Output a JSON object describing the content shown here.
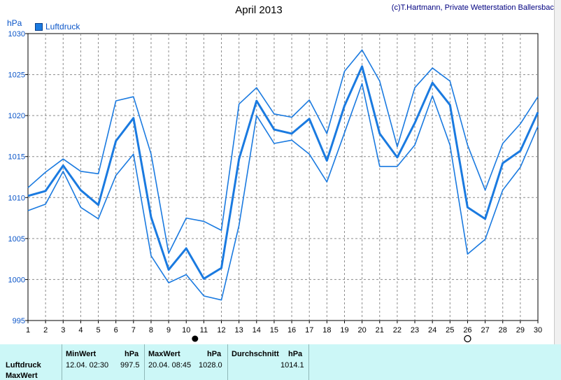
{
  "chart_data": {
    "type": "line",
    "title": "April 2013",
    "credit": "(c)T.Hartmann, Private Wetterstation Ballersbach",
    "unit": "hPa",
    "legend": [
      "Luftdruck"
    ],
    "x": [
      1,
      2,
      3,
      4,
      5,
      6,
      7,
      8,
      9,
      10,
      11,
      12,
      13,
      14,
      15,
      16,
      17,
      18,
      19,
      20,
      21,
      22,
      23,
      24,
      25,
      26,
      27,
      28,
      29,
      30
    ],
    "xlim": [
      1,
      30
    ],
    "ylim": [
      995,
      1030
    ],
    "yticks": [
      995,
      1000,
      1005,
      1010,
      1015,
      1020,
      1025,
      1030
    ],
    "grid": true,
    "series": [
      {
        "role": "max",
        "values": [
          1011.2,
          1013.1,
          1014.7,
          1013.2,
          1012.9,
          1021.8,
          1022.3,
          1015.3,
          1003.2,
          1007.5,
          1007.1,
          1006.0,
          1021.4,
          1023.4,
          1020.2,
          1019.8,
          1021.9,
          1017.8,
          1025.4,
          1028.0,
          1024.2,
          1016.2,
          1023.4,
          1025.8,
          1024.2,
          1016.4,
          1010.9,
          1016.6,
          1019.0,
          1022.3
        ]
      },
      {
        "role": "mean",
        "name": "Luftdruck",
        "values": [
          1010.2,
          1010.8,
          1013.9,
          1010.9,
          1009.1,
          1016.9,
          1019.7,
          1007.6,
          1001.2,
          1003.8,
          1000.1,
          1001.4,
          1014.7,
          1021.8,
          1018.3,
          1017.8,
          1019.6,
          1014.5,
          1021.2,
          1026.0,
          1017.8,
          1014.9,
          1019.1,
          1024.0,
          1021.3,
          1008.8,
          1007.4,
          1014.2,
          1015.7,
          1020.4
        ]
      },
      {
        "role": "min",
        "values": [
          1008.4,
          1009.2,
          1013.2,
          1008.8,
          1007.4,
          1012.7,
          1015.3,
          1002.9,
          999.6,
          1000.6,
          998.0,
          997.5,
          1006.6,
          1020.0,
          1016.6,
          1017.0,
          1015.3,
          1011.9,
          1017.9,
          1023.9,
          1013.8,
          1013.8,
          1016.4,
          1022.4,
          1016.4,
          1003.1,
          1004.9,
          1010.9,
          1013.7,
          1018.7
        ]
      }
    ],
    "markers": [
      {
        "day": 10.5,
        "symbol": "new-moon"
      },
      {
        "day": 26,
        "symbol": "full-moon"
      }
    ]
  },
  "table": {
    "row_labels": [
      "Luftdruck",
      "MaxWert"
    ],
    "min_header": "MinWert",
    "min_unit": "hPa",
    "min_datetime": "12.04.  02:30",
    "min_value": "997.5",
    "max_header": "MaxWert",
    "max_unit": "hPa",
    "max_datetime": "20.04.  08:45",
    "max_value": "1028.0",
    "avg_header": "Durchschnitt",
    "avg_unit": "hPa",
    "avg_value": "1014.1"
  },
  "colors": {
    "series": "#1a7ae0",
    "grid": "#8c8c8c",
    "axis": "#000000",
    "table_bg": "#ccf7f7"
  }
}
